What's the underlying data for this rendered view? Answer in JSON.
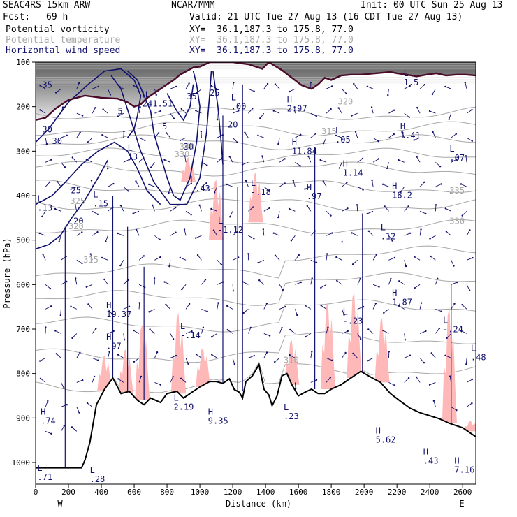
{
  "header": {
    "model": "SEAC4RS 15km ARW",
    "center": "NCAR/MMM",
    "init": "Init: 00 UTC Sun 25 Aug 13",
    "fcst_label": "Fcst:",
    "fcst_value": "69 h",
    "valid": "Valid: 21 UTC Tue 27 Aug 13 (16 CDT Tue 27 Aug 13)"
  },
  "legend": [
    {
      "name": "Potential vorticity",
      "xy": "XY=  36.1,187.3 to 175.8, 77.0",
      "color": "#000000"
    },
    {
      "name": "Potential temperature",
      "xy": "XY=  36.1,187.3 to 175.8, 77.0",
      "color": "#a8a8a8"
    },
    {
      "name": "Horizontal wind speed",
      "xy": "XY=  36.1,187.3 to 175.8, 77.0",
      "color": "#10106e"
    }
  ],
  "colors": {
    "pv_fill": "#ffb8b8",
    "terrain": "#000000",
    "tropopause": "#4a0a2a",
    "wind_contour": "#10106e",
    "theta_contour": "#a8a8a8",
    "strat_shade": "#3a3a3a"
  },
  "chart_data": {
    "type": "cross-section",
    "xlabel": "Distance (km)",
    "ylabel": "Pressure (hPa)",
    "xlim": [
      0,
      2680
    ],
    "ylim": [
      1020,
      100
    ],
    "xticks": [
      0,
      200,
      400,
      600,
      800,
      1000,
      1200,
      1400,
      1600,
      1800,
      2000,
      2200,
      2400,
      2600
    ],
    "yticks": [
      100,
      200,
      300,
      400,
      500,
      600,
      700,
      800,
      900,
      1000
    ],
    "x_end_labels": {
      "left": "W",
      "right": "E"
    },
    "terrain_surface_hPa": [
      [
        0,
        1012
      ],
      [
        150,
        1012
      ],
      [
        180,
        1012
      ],
      [
        280,
        1012
      ],
      [
        300,
        995
      ],
      [
        330,
        955
      ],
      [
        370,
        870
      ],
      [
        420,
        835
      ],
      [
        470,
        810
      ],
      [
        520,
        845
      ],
      [
        570,
        840
      ],
      [
        620,
        860
      ],
      [
        660,
        870
      ],
      [
        700,
        855
      ],
      [
        760,
        865
      ],
      [
        800,
        845
      ],
      [
        860,
        840
      ],
      [
        900,
        855
      ],
      [
        960,
        840
      ],
      [
        1000,
        830
      ],
      [
        1060,
        818
      ],
      [
        1100,
        818
      ],
      [
        1140,
        822
      ],
      [
        1180,
        812
      ],
      [
        1210,
        836
      ],
      [
        1240,
        842
      ],
      [
        1260,
        855
      ],
      [
        1280,
        818
      ],
      [
        1320,
        805
      ],
      [
        1360,
        780
      ],
      [
        1390,
        835
      ],
      [
        1420,
        848
      ],
      [
        1440,
        872
      ],
      [
        1470,
        850
      ],
      [
        1500,
        805
      ],
      [
        1530,
        800
      ],
      [
        1560,
        825
      ],
      [
        1600,
        850
      ],
      [
        1640,
        842
      ],
      [
        1680,
        835
      ],
      [
        1720,
        845
      ],
      [
        1760,
        845
      ],
      [
        1800,
        835
      ],
      [
        1860,
        825
      ],
      [
        1920,
        810
      ],
      [
        1980,
        795
      ],
      [
        2040,
        808
      ],
      [
        2100,
        820
      ],
      [
        2160,
        845
      ],
      [
        2220,
        862
      ],
      [
        2280,
        878
      ],
      [
        2340,
        888
      ],
      [
        2400,
        895
      ],
      [
        2460,
        902
      ],
      [
        2520,
        912
      ],
      [
        2600,
        922
      ],
      [
        2680,
        942
      ]
    ],
    "wind_speed_contour_labels": [
      {
        "text": "35",
        "x": 40,
        "y": 135
      },
      {
        "text": "30",
        "x": 100,
        "y": 272
      },
      {
        "text": "25",
        "x": 1060,
        "y": 155
      },
      {
        "text": "20",
        "x": 1170,
        "y": 232
      },
      {
        "text": "30",
        "x": 900,
        "y": 286
      },
      {
        "text": "25",
        "x": 215,
        "y": 392
      },
      {
        "text": "20",
        "x": 230,
        "y": 467
      },
      {
        "text": "35",
        "x": 920,
        "y": 163
      },
      {
        "text": "30",
        "x": 40,
        "y": 244
      },
      {
        "text": "5",
        "x": 770,
        "y": 236
      },
      {
        "text": "5",
        "x": 500,
        "y": 200
      }
    ],
    "theta_contour_labels": [
      {
        "text": "340",
        "x": 875,
        "y": 286
      },
      {
        "text": "320",
        "x": 1840,
        "y": 176
      },
      {
        "text": "315",
        "x": 1740,
        "y": 248
      },
      {
        "text": "335",
        "x": 2520,
        "y": 393
      },
      {
        "text": "330",
        "x": 2520,
        "y": 467
      },
      {
        "text": "325",
        "x": 210,
        "y": 418
      },
      {
        "text": "320",
        "x": 200,
        "y": 479
      },
      {
        "text": "315",
        "x": 290,
        "y": 561
      },
      {
        "text": "330",
        "x": 845,
        "y": 304
      },
      {
        "text": "310",
        "x": 1510,
        "y": 805
      }
    ],
    "pv_high_low_labels": [
      {
        "kind": "H",
        "value": "241.51",
        "x": 650,
        "y": 181
      },
      {
        "kind": "L",
        "value": "13",
        "x": 560,
        "y": 310
      },
      {
        "kind": "L",
        "value": ".00",
        "x": 1190,
        "y": 188
      },
      {
        "kind": "H",
        "value": "2.97",
        "x": 1530,
        "y": 193
      },
      {
        "kind": "L",
        "value": "1.5",
        "x": 2240,
        "y": 129
      },
      {
        "kind": "H",
        "value": "11.84",
        "x": 1560,
        "y": 297
      },
      {
        "kind": "L",
        "value": ".05",
        "x": 1825,
        "y": 269
      },
      {
        "kind": "H",
        "value": "1.41",
        "x": 2220,
        "y": 258
      },
      {
        "kind": "L",
        "value": ".07",
        "x": 2520,
        "y": 313
      },
      {
        "kind": "H",
        "value": "1.14",
        "x": 1870,
        "y": 349
      },
      {
        "kind": "L",
        "value": "-.18",
        "x": 1310,
        "y": 396
      },
      {
        "kind": "H",
        "value": ".97",
        "x": 1650,
        "y": 406
      },
      {
        "kind": "H",
        "value": "18.2",
        "x": 2170,
        "y": 404
      },
      {
        "kind": "L",
        "value": ".12",
        "x": 2100,
        "y": 504
      },
      {
        "kind": "L",
        "value": "-1.12",
        "x": 1110,
        "y": 488
      },
      {
        "kind": "L",
        "value": "-.43",
        "x": 940,
        "y": 388
      },
      {
        "kind": "L",
        "value": ".15",
        "x": 350,
        "y": 424
      },
      {
        "kind": "L",
        "value": ".13",
        "x": 10,
        "y": 434
      },
      {
        "kind": "H",
        "value": "19.37",
        "x": 430,
        "y": 694
      },
      {
        "kind": "H",
        "value": ".97",
        "x": 430,
        "y": 771
      },
      {
        "kind": "L",
        "value": "-.14",
        "x": 880,
        "y": 745
      },
      {
        "kind": "L",
        "value": "2.19",
        "x": 840,
        "y": 919
      },
      {
        "kind": "H",
        "value": "9.35",
        "x": 1050,
        "y": 953
      },
      {
        "kind": "L",
        "value": ".23",
        "x": 1510,
        "y": 942
      },
      {
        "kind": "H",
        "value": "1.87",
        "x": 2170,
        "y": 664
      },
      {
        "kind": "L",
        "value": "-.23",
        "x": 1870,
        "y": 710
      },
      {
        "kind": "L",
        "value": "-.24",
        "x": 2480,
        "y": 730
      },
      {
        "kind": "L",
        "value": ".48",
        "x": 2650,
        "y": 798
      },
      {
        "kind": "H",
        "value": "5.62",
        "x": 2070,
        "y": 999
      },
      {
        "kind": "H",
        "value": ".43",
        "x": 2360,
        "y": 1050
      },
      {
        "kind": "H",
        "value": "7.16",
        "x": 2550,
        "y": 1072
      },
      {
        "kind": "L",
        "value": ".28",
        "x": 330,
        "y": 1095
      },
      {
        "kind": "H",
        "value": ".74",
        "x": 30,
        "y": 953
      },
      {
        "kind": "L",
        "value": ".71",
        "x": 10,
        "y": 1090
      }
    ],
    "pv_positive_regions": [
      {
        "x_center": 420,
        "base_hPa": 840,
        "top_hPa": 740
      },
      {
        "x_center": 550,
        "base_hPa": 845,
        "top_hPa": 720
      },
      {
        "x_center": 650,
        "base_hPa": 860,
        "top_hPa": 650
      },
      {
        "x_center": 870,
        "base_hPa": 845,
        "top_hPa": 620
      },
      {
        "x_center": 1020,
        "base_hPa": 830,
        "top_hPa": 720
      },
      {
        "x_center": 1560,
        "base_hPa": 825,
        "top_hPa": 700
      },
      {
        "x_center": 1780,
        "base_hPa": 835,
        "top_hPa": 590
      },
      {
        "x_center": 1940,
        "base_hPa": 810,
        "top_hPa": 570
      },
      {
        "x_center": 2110,
        "base_hPa": 820,
        "top_hPa": 640
      },
      {
        "x_center": 2520,
        "base_hPa": 912,
        "top_hPa": 590
      },
      {
        "x_center": 2650,
        "base_hPa": 930,
        "top_hPa": 900
      },
      {
        "x_center": 930,
        "base_hPa": 370,
        "top_hPa": 300
      },
      {
        "x_center": 1100,
        "base_hPa": 500,
        "top_hPa": 330
      },
      {
        "x_center": 1340,
        "base_hPa": 460,
        "top_hPa": 320
      }
    ]
  }
}
